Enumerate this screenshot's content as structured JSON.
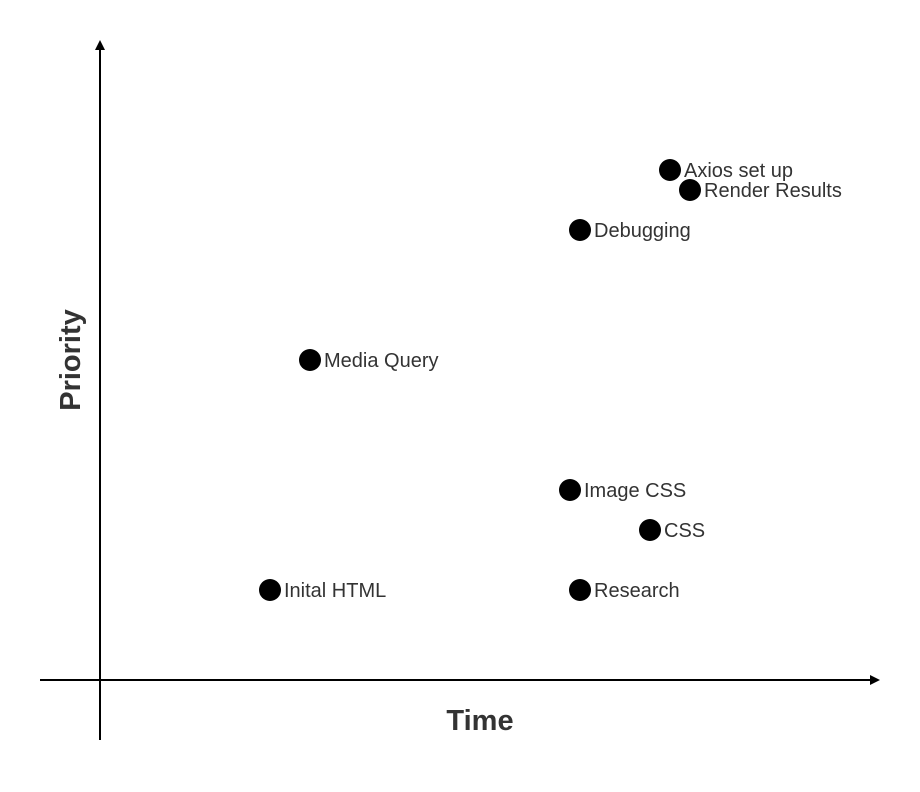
{
  "chart_data": {
    "type": "scatter",
    "title": "",
    "xlabel": "Time",
    "ylabel": "Priority",
    "xlim": [
      0,
      780
    ],
    "ylim": [
      0,
      640
    ],
    "grid": false,
    "legend": "none",
    "point_color": "#000000",
    "points": [
      {
        "label": "Axios set up",
        "x": 570,
        "y": 510
      },
      {
        "label": "Render Results",
        "x": 590,
        "y": 490
      },
      {
        "label": "Debugging",
        "x": 480,
        "y": 450
      },
      {
        "label": "Media Query",
        "x": 210,
        "y": 320
      },
      {
        "label": "Image CSS",
        "x": 470,
        "y": 190
      },
      {
        "label": "CSS",
        "x": 550,
        "y": 150
      },
      {
        "label": "Inital HTML",
        "x": 170,
        "y": 90
      },
      {
        "label": "Research",
        "x": 480,
        "y": 90
      }
    ]
  }
}
